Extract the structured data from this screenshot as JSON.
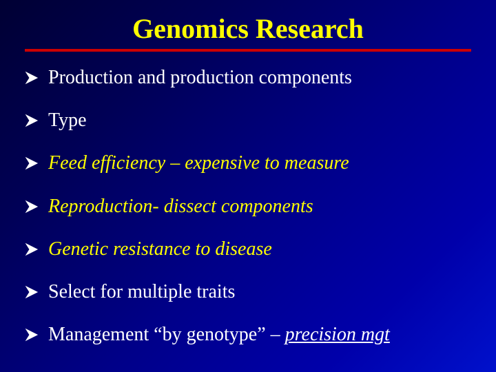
{
  "colors": {
    "title": "#ffff00",
    "rule": "#cc0000",
    "bullet_white": "#ffffff",
    "bullet_yellow": "#ffff00",
    "arrow_fill": "#ffffff",
    "arrow_line_width": 1
  },
  "title": "Genomics Research",
  "bullets": [
    {
      "text": "Production and production components",
      "color": "#ffffff",
      "italic": false,
      "underlined_part": null
    },
    {
      "text": "Type",
      "color": "#ffffff",
      "italic": false,
      "underlined_part": null
    },
    {
      "text": "Feed efficiency – expensive to measure",
      "color": "#ffff00",
      "italic": true,
      "underlined_part": null
    },
    {
      "text": "Reproduction- dissect components",
      "color": "#ffff00",
      "italic": true,
      "underlined_part": null
    },
    {
      "text": "Genetic resistance to disease",
      "color": "#ffff00",
      "italic": true,
      "underlined_part": null
    },
    {
      "text": "Select for multiple traits",
      "color": "#ffffff",
      "italic": false,
      "underlined_part": null
    },
    {
      "text": "Management “by genotype” – ",
      "color": "#ffffff",
      "italic": false,
      "underlined_part": "precision mgt"
    }
  ]
}
